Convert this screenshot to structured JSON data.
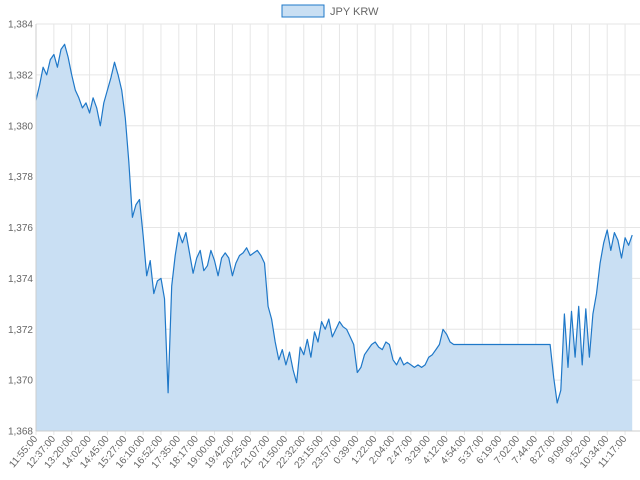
{
  "chart_data": {
    "type": "area",
    "legend": {
      "label": "JPY KRW",
      "position": "top-center"
    },
    "colors": {
      "line": "#1f78c8",
      "fill": "#c9dff3",
      "grid": "#e6e6e6"
    },
    "grid": true,
    "ylim": [
      1368,
      1384
    ],
    "y_ticks": [
      "1,368",
      "1,370",
      "1,372",
      "1,374",
      "1,376",
      "1,378",
      "1,380",
      "1,382",
      "1,384"
    ],
    "x_ticks": [
      "11:55:00",
      "12:37:00",
      "13:20:00",
      "14:02:00",
      "14:45:00",
      "15:27:00",
      "16:10:00",
      "16:52:00",
      "17:35:00",
      "18:17:00",
      "19:00:00",
      "19:42:00",
      "20:25:00",
      "21:07:00",
      "21:50:00",
      "22:32:00",
      "23:15:00",
      "23:57:00",
      "0:39:00",
      "1:22:00",
      "2:04:00",
      "2:47:00",
      "3:29:00",
      "4:12:00",
      "4:54:00",
      "5:37:00",
      "6:19:00",
      "7:02:00",
      "7:44:00",
      "8:27:00",
      "9:09:00",
      "9:52:00",
      "10:34:00",
      "11:17:00"
    ],
    "series": [
      {
        "name": "JPY KRW",
        "points": [
          [
            0,
            1381
          ],
          [
            0.2,
            1381.6
          ],
          [
            0.4,
            1382.3
          ],
          [
            0.6,
            1382.0
          ],
          [
            0.8,
            1382.6
          ],
          [
            1.0,
            1382.8
          ],
          [
            1.2,
            1382.3
          ],
          [
            1.4,
            1383.0
          ],
          [
            1.6,
            1383.2
          ],
          [
            1.8,
            1382.7
          ],
          [
            2.0,
            1382.0
          ],
          [
            2.2,
            1381.4
          ],
          [
            2.4,
            1381.1
          ],
          [
            2.6,
            1380.7
          ],
          [
            2.8,
            1380.9
          ],
          [
            3.0,
            1380.5
          ],
          [
            3.2,
            1381.1
          ],
          [
            3.4,
            1380.7
          ],
          [
            3.6,
            1380.0
          ],
          [
            3.8,
            1380.9
          ],
          [
            4.0,
            1381.4
          ],
          [
            4.2,
            1381.9
          ],
          [
            4.4,
            1382.5
          ],
          [
            4.6,
            1382.0
          ],
          [
            4.8,
            1381.4
          ],
          [
            5.0,
            1380.3
          ],
          [
            5.2,
            1378.6
          ],
          [
            5.4,
            1376.4
          ],
          [
            5.6,
            1376.9
          ],
          [
            5.8,
            1377.1
          ],
          [
            6.0,
            1375.7
          ],
          [
            6.2,
            1374.1
          ],
          [
            6.4,
            1374.7
          ],
          [
            6.6,
            1373.4
          ],
          [
            6.8,
            1373.9
          ],
          [
            7.0,
            1374.0
          ],
          [
            7.2,
            1373.2
          ],
          [
            7.4,
            1369.5
          ],
          [
            7.6,
            1373.7
          ],
          [
            7.8,
            1374.9
          ],
          [
            8.0,
            1375.8
          ],
          [
            8.2,
            1375.4
          ],
          [
            8.4,
            1375.8
          ],
          [
            8.6,
            1375.0
          ],
          [
            8.8,
            1374.2
          ],
          [
            9.0,
            1374.8
          ],
          [
            9.2,
            1375.1
          ],
          [
            9.4,
            1374.3
          ],
          [
            9.6,
            1374.5
          ],
          [
            9.8,
            1375.1
          ],
          [
            10.0,
            1374.7
          ],
          [
            10.2,
            1374.1
          ],
          [
            10.4,
            1374.8
          ],
          [
            10.6,
            1375.0
          ],
          [
            10.8,
            1374.8
          ],
          [
            11.0,
            1374.1
          ],
          [
            11.2,
            1374.6
          ],
          [
            11.4,
            1374.9
          ],
          [
            11.6,
            1375.0
          ],
          [
            11.8,
            1375.2
          ],
          [
            12.0,
            1374.9
          ],
          [
            12.2,
            1375.0
          ],
          [
            12.4,
            1375.1
          ],
          [
            12.6,
            1374.9
          ],
          [
            12.8,
            1374.6
          ],
          [
            13.0,
            1372.9
          ],
          [
            13.2,
            1372.4
          ],
          [
            13.4,
            1371.5
          ],
          [
            13.6,
            1370.8
          ],
          [
            13.8,
            1371.2
          ],
          [
            14.0,
            1370.6
          ],
          [
            14.2,
            1371.1
          ],
          [
            14.4,
            1370.4
          ],
          [
            14.6,
            1369.9
          ],
          [
            14.8,
            1371.3
          ],
          [
            15.0,
            1371.0
          ],
          [
            15.2,
            1371.6
          ],
          [
            15.4,
            1370.9
          ],
          [
            15.6,
            1371.9
          ],
          [
            15.8,
            1371.5
          ],
          [
            16.0,
            1372.3
          ],
          [
            16.2,
            1372.0
          ],
          [
            16.4,
            1372.4
          ],
          [
            16.6,
            1371.7
          ],
          [
            16.8,
            1372.0
          ],
          [
            17.0,
            1372.3
          ],
          [
            17.2,
            1372.1
          ],
          [
            17.4,
            1372.0
          ],
          [
            17.6,
            1371.7
          ],
          [
            17.8,
            1371.4
          ],
          [
            18.0,
            1370.3
          ],
          [
            18.2,
            1370.5
          ],
          [
            18.4,
            1371.0
          ],
          [
            18.6,
            1371.2
          ],
          [
            18.8,
            1371.4
          ],
          [
            19.0,
            1371.5
          ],
          [
            19.2,
            1371.3
          ],
          [
            19.4,
            1371.2
          ],
          [
            19.6,
            1371.5
          ],
          [
            19.8,
            1371.4
          ],
          [
            20.0,
            1370.8
          ],
          [
            20.2,
            1370.6
          ],
          [
            20.4,
            1370.9
          ],
          [
            20.6,
            1370.6
          ],
          [
            20.8,
            1370.7
          ],
          [
            21.0,
            1370.6
          ],
          [
            21.2,
            1370.5
          ],
          [
            21.4,
            1370.6
          ],
          [
            21.6,
            1370.5
          ],
          [
            21.8,
            1370.6
          ],
          [
            22.0,
            1370.9
          ],
          [
            22.2,
            1371.0
          ],
          [
            22.4,
            1371.2
          ],
          [
            22.6,
            1371.4
          ],
          [
            22.8,
            1372.0
          ],
          [
            23.0,
            1371.8
          ],
          [
            23.2,
            1371.5
          ],
          [
            23.4,
            1371.4
          ],
          [
            25.0,
            1371.4
          ],
          [
            27.0,
            1371.4
          ],
          [
            28.8,
            1371.4
          ],
          [
            29.0,
            1370.1
          ],
          [
            29.2,
            1369.1
          ],
          [
            29.4,
            1369.6
          ],
          [
            29.6,
            1372.6
          ],
          [
            29.8,
            1370.5
          ],
          [
            30.0,
            1372.7
          ],
          [
            30.2,
            1370.9
          ],
          [
            30.4,
            1372.9
          ],
          [
            30.6,
            1370.6
          ],
          [
            30.8,
            1372.8
          ],
          [
            31.0,
            1370.9
          ],
          [
            31.2,
            1372.6
          ],
          [
            31.4,
            1373.4
          ],
          [
            31.6,
            1374.6
          ],
          [
            31.8,
            1375.4
          ],
          [
            32.0,
            1375.9
          ],
          [
            32.2,
            1375.1
          ],
          [
            32.4,
            1375.8
          ],
          [
            32.6,
            1375.5
          ],
          [
            32.8,
            1374.8
          ],
          [
            33.0,
            1375.6
          ],
          [
            33.2,
            1375.3
          ],
          [
            33.4,
            1375.7
          ]
        ]
      }
    ]
  }
}
